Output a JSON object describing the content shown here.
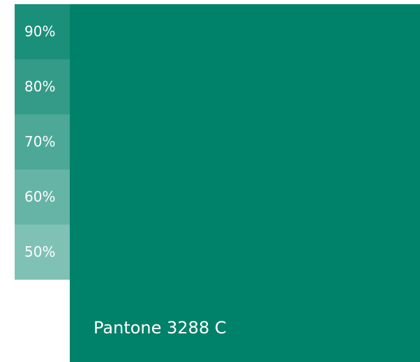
{
  "swatch": {
    "label": "Pantone 3288 C",
    "color": "#00826A"
  },
  "tints": [
    {
      "label": "90%",
      "color": "#1A8F79"
    },
    {
      "label": "80%",
      "color": "#339B88"
    },
    {
      "label": "70%",
      "color": "#4DA897"
    },
    {
      "label": "60%",
      "color": "#66B4A6"
    },
    {
      "label": "50%",
      "color": "#80C1B5"
    }
  ]
}
